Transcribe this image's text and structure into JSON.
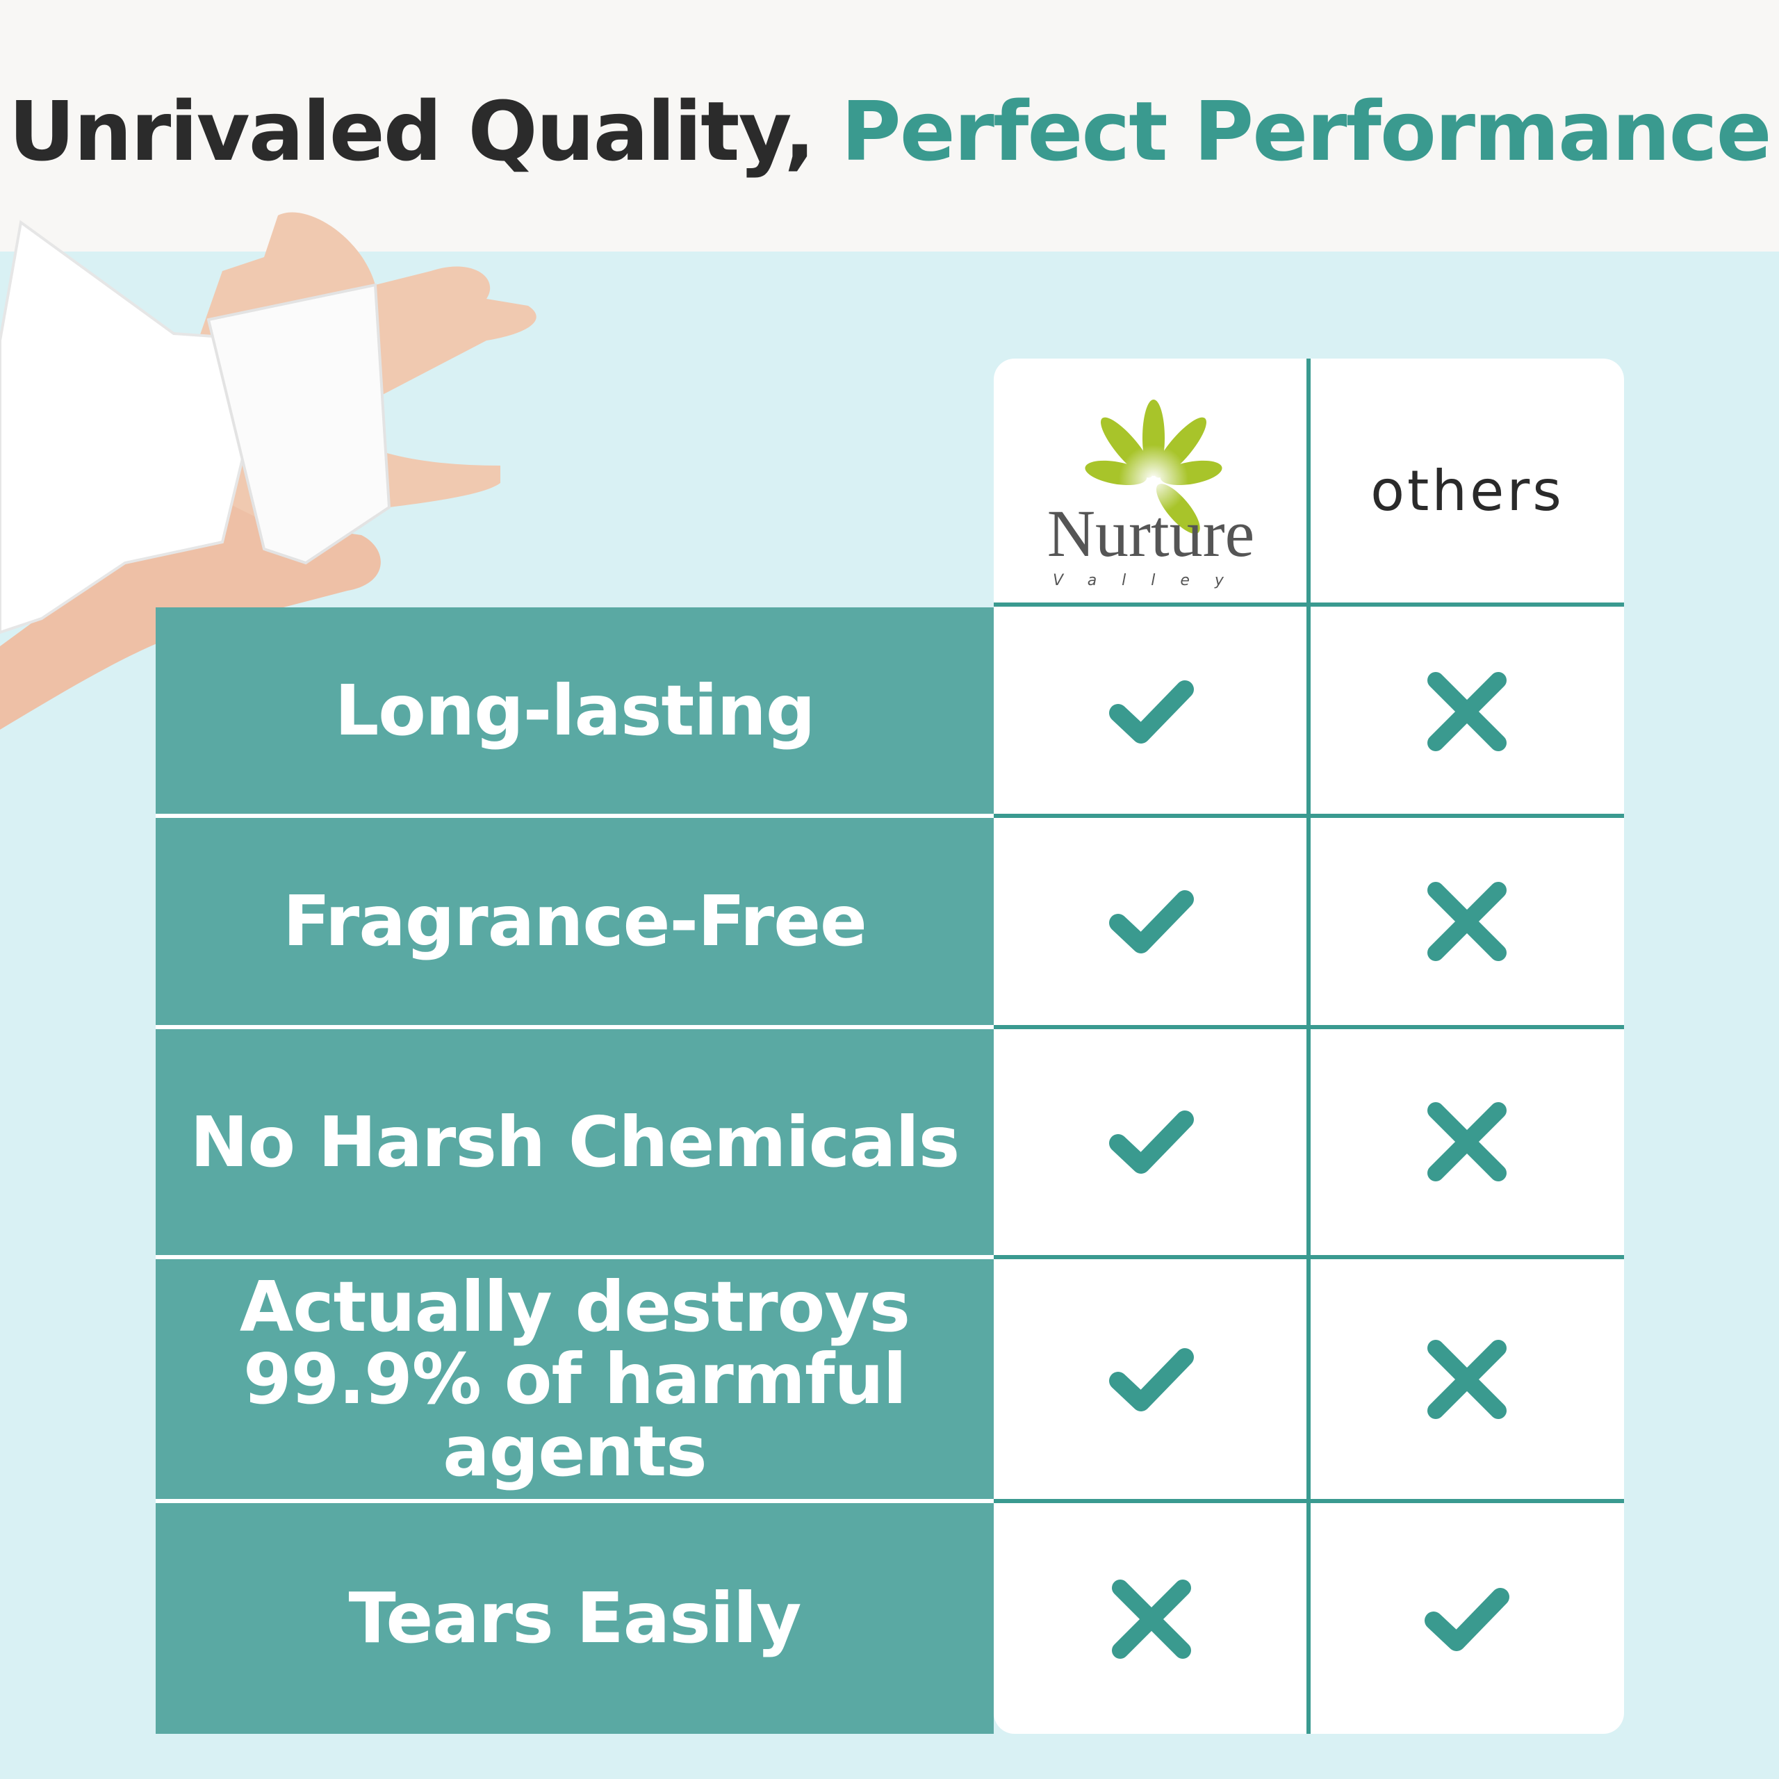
{
  "header": {
    "title_part1": "Unrivaled Quality,",
    "title_part2": "Perfect Performance"
  },
  "table": {
    "columns": [
      {
        "name": "Nurture",
        "subname": "Valley",
        "type": "logo"
      },
      {
        "name": "others"
      }
    ],
    "rows": [
      {
        "label": "Long-lasting",
        "nurture": "check",
        "others": "cross"
      },
      {
        "label": "Fragrance-Free",
        "nurture": "check",
        "others": "cross"
      },
      {
        "label": "No Harsh Chemicals",
        "nurture": "check",
        "others": "cross"
      },
      {
        "label": "Actually destroys 99.9% of harmful agents",
        "nurture": "check",
        "others": "cross"
      },
      {
        "label": "Tears Easily",
        "nurture": "cross",
        "others": "check"
      }
    ]
  },
  "colors": {
    "accent": "#3a9a8f",
    "panel": "#5aa9a3",
    "background": "#d9f1f4",
    "logo_leaf": "#a8c42a"
  }
}
